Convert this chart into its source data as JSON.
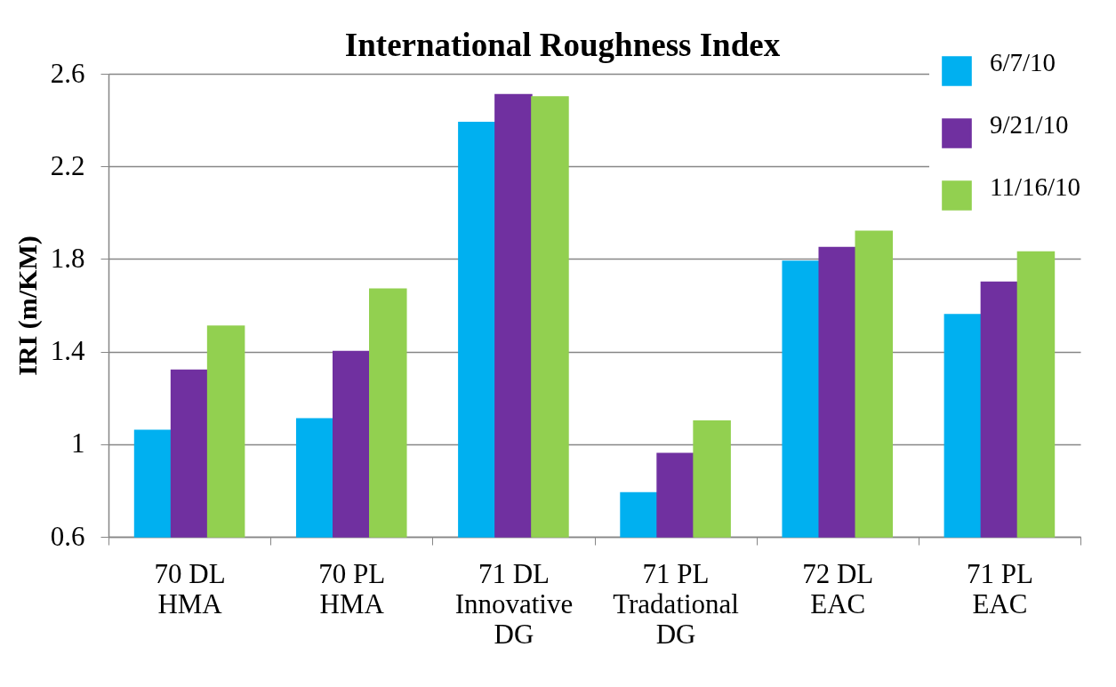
{
  "chart_data": {
    "type": "bar",
    "title": "International Roughness Index",
    "ylabel": "IRI (m/KM)",
    "categories": [
      "70 DL\nHMA",
      "70 PL\nHMA",
      "71 DL\nInnovative\nDG",
      "71 PL\nTradational\nDG",
      "72 DL\nEAC",
      "71 PL\nEAC"
    ],
    "series": [
      {
        "name": "6/7/10",
        "color": "#00b0f0",
        "values": [
          1.06,
          1.11,
          2.39,
          0.79,
          1.79,
          1.56
        ]
      },
      {
        "name": "9/21/10",
        "color": "#7030a0",
        "values": [
          1.32,
          1.4,
          2.51,
          0.96,
          1.85,
          1.7
        ]
      },
      {
        "name": "11/16/10",
        "color": "#92d050",
        "values": [
          1.51,
          1.67,
          2.5,
          1.1,
          1.92,
          1.83
        ]
      }
    ],
    "ylim": [
      0.6,
      2.6
    ],
    "yticks": [
      0.6,
      1,
      1.4,
      1.8,
      2.2,
      2.6
    ],
    "grid": "y",
    "legend": "top right"
  }
}
